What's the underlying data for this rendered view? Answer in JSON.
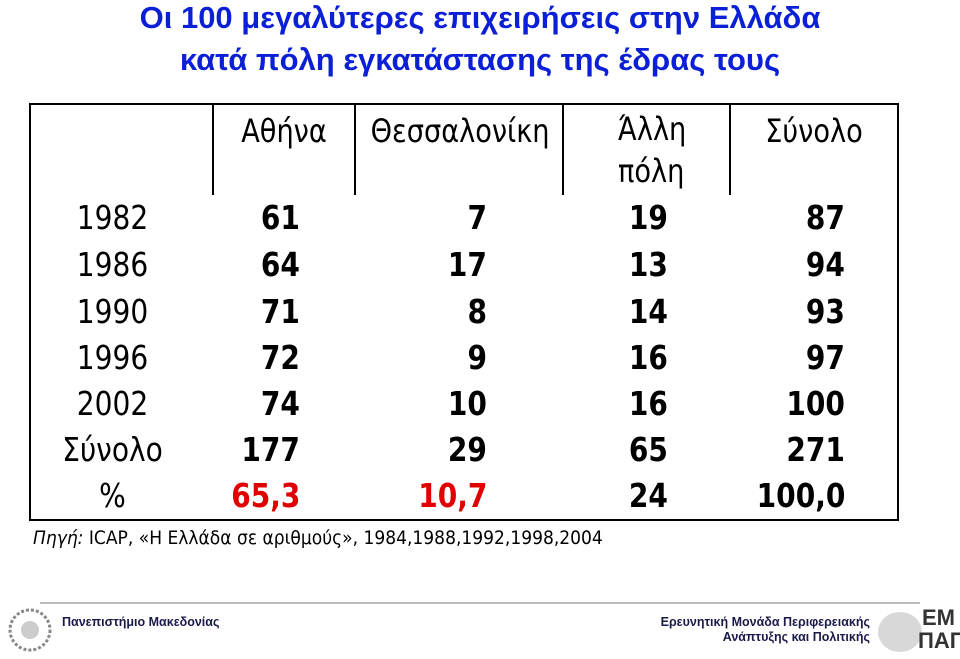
{
  "title": [
    "Οι 100 μεγαλύτερες επιχειρήσεις στην Ελλάδα",
    "κατά πόλη εγκατάστασης της έδρας τους"
  ],
  "table": {
    "header": [
      "Αθήνα",
      "Θεσσαλονίκη",
      "Άλλη πόλη",
      "Σύνολο"
    ],
    "rows": [
      [
        "1982",
        61,
        7,
        19,
        87
      ],
      [
        "1986",
        64,
        17,
        13,
        94
      ],
      [
        "1990",
        71,
        8,
        14,
        93
      ],
      [
        "1996",
        72,
        9,
        16,
        97
      ],
      [
        "2002",
        74,
        10,
        16,
        100
      ],
      [
        "Σύνολο",
        177,
        29,
        65,
        271
      ],
      [
        "%",
        "65,3",
        "10,7",
        24,
        "100,0"
      ]
    ],
    "highlight_color": "#e00000"
  },
  "source": {
    "label": "Πηγή:",
    "text": "ICAP, «Η Ελλάδα σε αριθμούς», 1984,1988,1992,1998,2004"
  },
  "footer": {
    "left": "Πανεπιστήμιο Μακεδονίας",
    "right": [
      "Ερευνητική Μονάδα Περιφερειακής",
      "Ανάπτυξης και Πολιτικής"
    ],
    "logo": [
      "ΕΜ",
      "ΠΑΠ"
    ]
  }
}
